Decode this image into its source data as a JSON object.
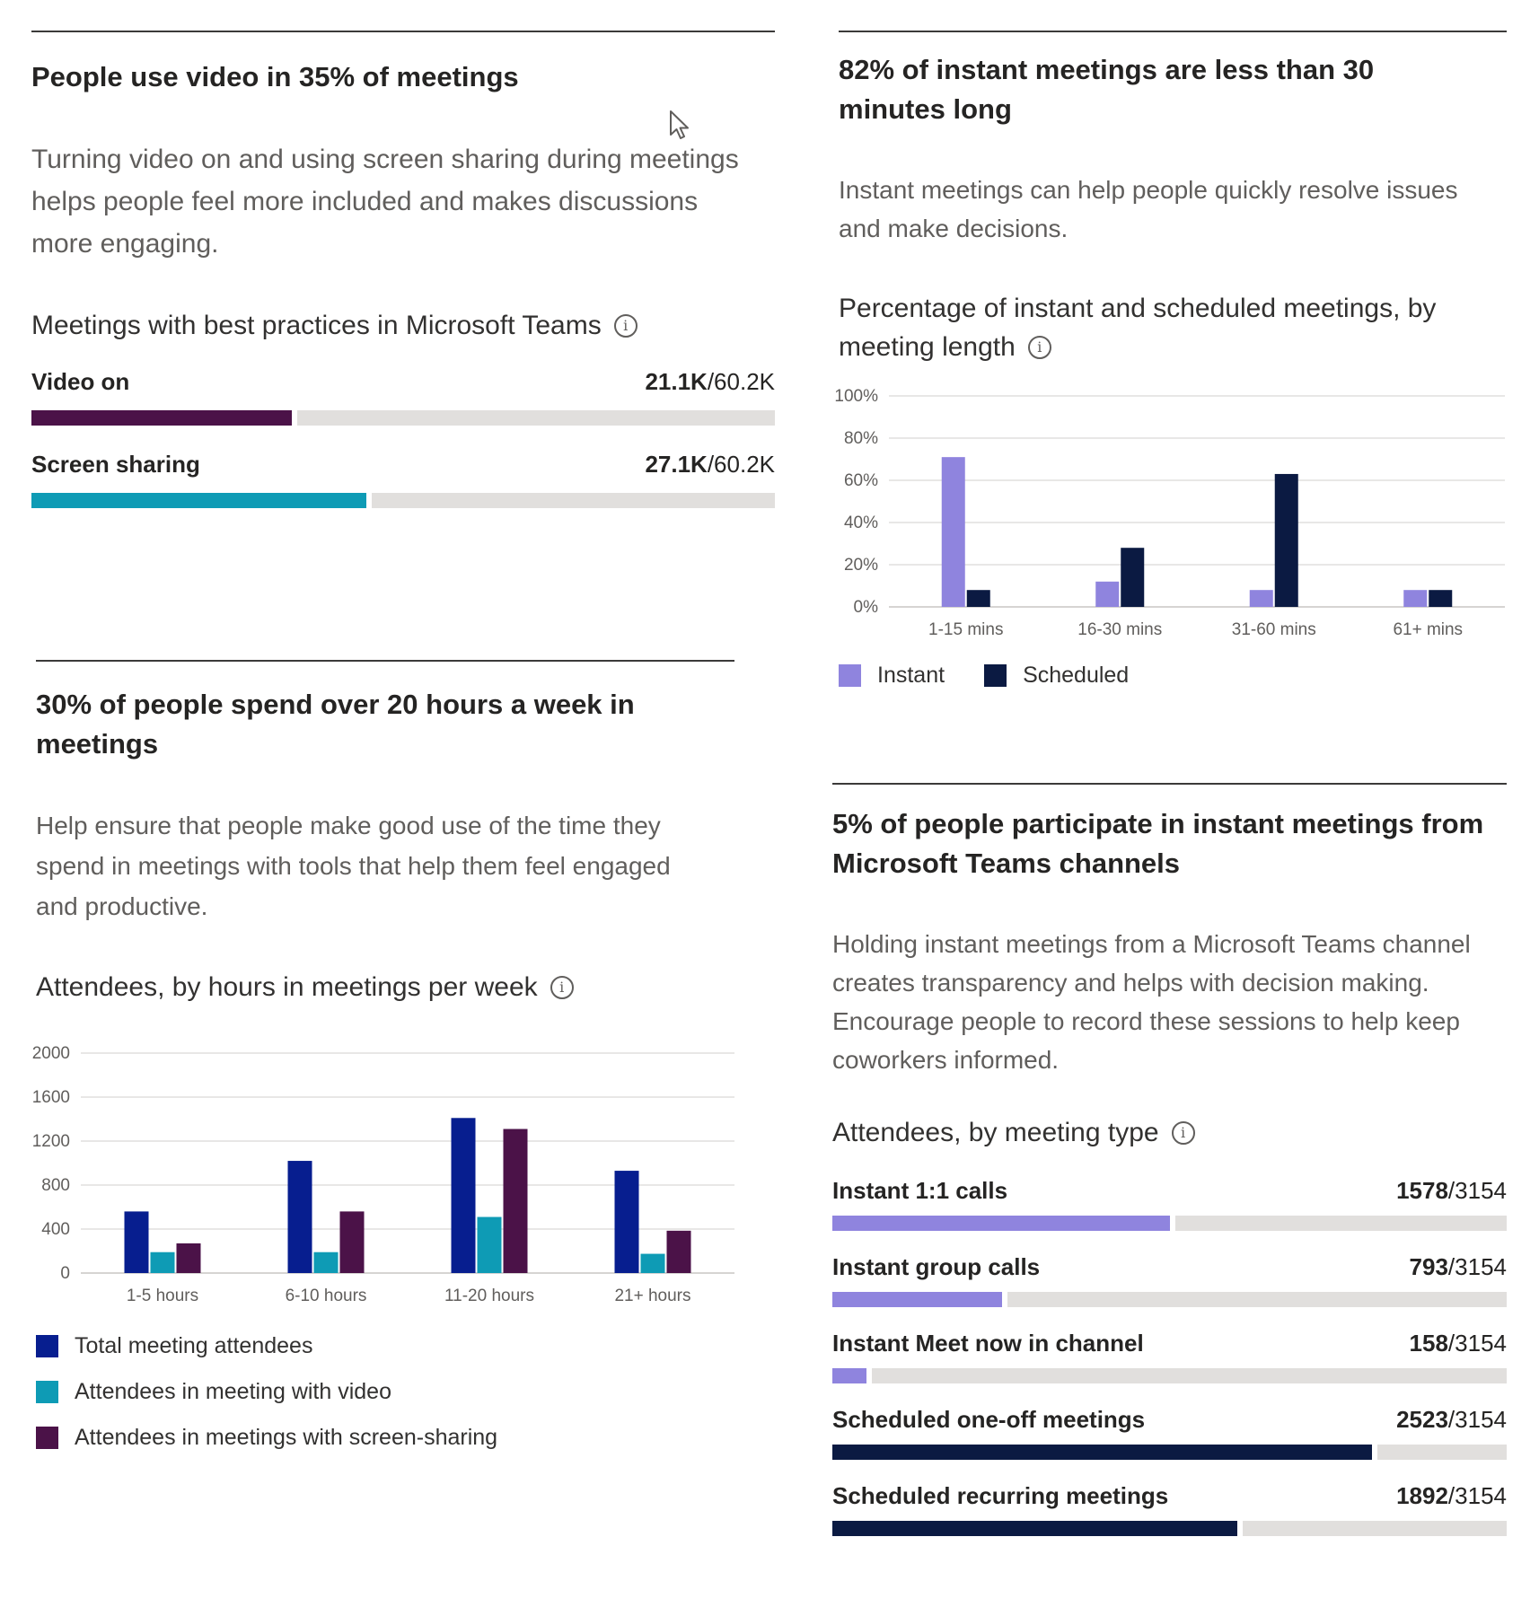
{
  "video_card": {
    "headline": "People use video in 35% of meetings",
    "description": "Turning video on and using screen sharing during meetings helps people feel more included and makes discussions more engaging.",
    "subhead": "Meetings with best practices in Microsoft Teams",
    "bars": [
      {
        "label": "Video on",
        "value": "21.1K",
        "total": "/60.2K",
        "fraction": 0.35,
        "color": "#4b1248"
      },
      {
        "label": "Screen sharing",
        "value": "27.1K",
        "total": "/60.2K",
        "fraction": 0.45,
        "color": "#0e9bb5"
      }
    ]
  },
  "instant_card": {
    "headline": "82% of instant meetings are less than 30 minutes long",
    "description": "Instant meetings can help people quickly resolve issues and make decisions.",
    "subhead": "Percentage of instant and scheduled meetings, by meeting length",
    "legend": [
      {
        "label": "Instant",
        "color": "#8f84de"
      },
      {
        "label": "Scheduled",
        "color": "#0b1a42"
      }
    ]
  },
  "hours_card": {
    "headline": "30% of people spend over 20 hours a week in meetings",
    "description": "Help ensure that people make good use of the time they spend in meetings with tools that help them feel engaged and productive.",
    "subhead": "Attendees, by hours in meetings per week",
    "legend": [
      {
        "label": "Total meeting attendees",
        "color": "#071e8f"
      },
      {
        "label": "Attendees in meeting with video",
        "color": "#0e9bb5"
      },
      {
        "label": "Attendees in meetings with screen-sharing",
        "color": "#4b1248"
      }
    ]
  },
  "channel_card": {
    "headline": "5% of people participate in instant meetings from Microsoft Teams channels",
    "description": "Holding instant meetings from a Microsoft Teams channel creates transparency and helps with decision making. Encourage people to record these sessions to help keep coworkers informed.",
    "subhead": "Attendees, by meeting type",
    "bars": [
      {
        "label": "Instant 1:1 calls",
        "value": "1578",
        "total": "/3154",
        "fraction": 0.5003,
        "color": "#8f84de"
      },
      {
        "label": "Instant group calls",
        "value": "793",
        "total": "/3154",
        "fraction": 0.2514,
        "color": "#8f84de"
      },
      {
        "label": "Instant Meet now in channel",
        "value": "158",
        "total": "/3154",
        "fraction": 0.0501,
        "color": "#8f84de"
      },
      {
        "label": "Scheduled one-off meetings",
        "value": "2523",
        "total": "/3154",
        "fraction": 0.7999,
        "color": "#0b1a42"
      },
      {
        "label": "Scheduled recurring meetings",
        "value": "1892",
        "total": "/3154",
        "fraction": 0.5999,
        "color": "#0b1a42"
      }
    ]
  },
  "chart_data": [
    {
      "type": "bar",
      "title": "Percentage of instant and scheduled meetings, by meeting length",
      "categories": [
        "1-15 mins",
        "16-30 mins",
        "31-60 mins",
        "61+ mins"
      ],
      "series": [
        {
          "name": "Instant",
          "values": [
            71,
            12,
            8,
            8
          ],
          "color": "#8f84de"
        },
        {
          "name": "Scheduled",
          "values": [
            8,
            28,
            63,
            8
          ],
          "color": "#0b1a42"
        }
      ],
      "yticks": [
        "0%",
        "20%",
        "40%",
        "60%",
        "80%",
        "100%"
      ],
      "ylim": [
        0,
        100
      ],
      "grid": true,
      "legend": "bottom-left"
    },
    {
      "type": "bar",
      "title": "Attendees, by hours in meetings per week",
      "categories": [
        "1-5 hours",
        "6-10 hours",
        "11-20 hours",
        "21+ hours"
      ],
      "series": [
        {
          "name": "Total meeting attendees",
          "values": [
            560,
            1020,
            1410,
            930
          ],
          "color": "#071e8f"
        },
        {
          "name": "Attendees in meeting with video",
          "values": [
            190,
            190,
            510,
            175
          ],
          "color": "#0e9bb5"
        },
        {
          "name": "Attendees in meetings with screen-sharing",
          "values": [
            270,
            560,
            1310,
            385
          ],
          "color": "#4b1248"
        }
      ],
      "yticks": [
        "0",
        "400",
        "800",
        "1200",
        "1600",
        "2000"
      ],
      "ylim": [
        0,
        2000
      ],
      "grid": true,
      "legend": "bottom-left"
    }
  ]
}
